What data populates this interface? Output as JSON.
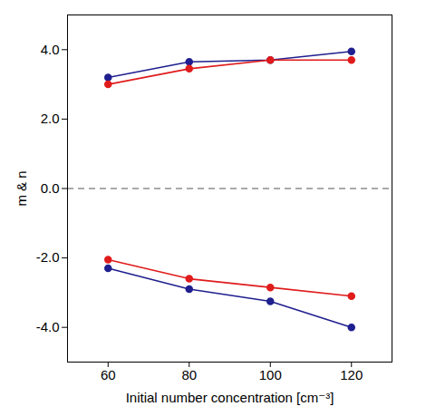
{
  "chart_data": {
    "type": "line",
    "x_label": "Initial number concentration [cm⁻³]",
    "y_label": "m & n",
    "x": [
      60,
      80,
      100,
      120
    ],
    "series": [
      {
        "color": "#1f1f8f",
        "marker": "circle",
        "values": [
          3.2,
          3.65,
          3.7,
          3.95
        ]
      },
      {
        "color": "#e01b1b",
        "marker": "circle",
        "values": [
          3.0,
          3.45,
          3.7,
          3.7
        ]
      },
      {
        "color": "#1f1f8f",
        "marker": "circle",
        "values": [
          -2.3,
          -2.9,
          -3.25,
          -4.0
        ]
      },
      {
        "color": "#e01b1b",
        "marker": "circle",
        "values": [
          -2.05,
          -2.6,
          -2.85,
          -3.1
        ]
      }
    ],
    "reference_line": 0,
    "xlim": [
      50,
      130
    ],
    "xticks": [
      60,
      80,
      100,
      120
    ],
    "ylim": [
      -5,
      5
    ],
    "yticks": [
      {
        "value": -4,
        "label": "-4.0"
      },
      {
        "value": -2,
        "label": "-2.0"
      },
      {
        "value": 0,
        "label": "0.0"
      },
      {
        "value": 2,
        "label": "2.0"
      },
      {
        "value": 4,
        "label": "4.0"
      }
    ],
    "grid": false,
    "line_style": "solid"
  }
}
